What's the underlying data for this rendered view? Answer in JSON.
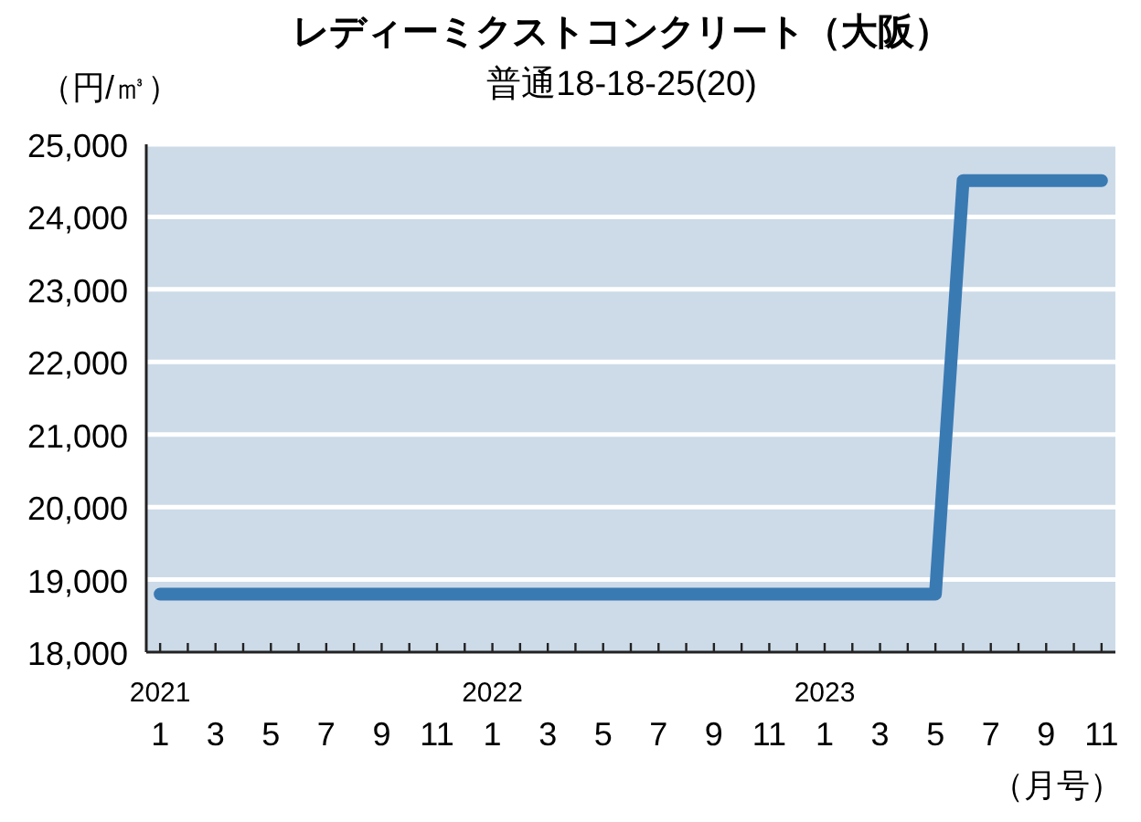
{
  "chart_data": {
    "type": "line",
    "title": "レディーミクストコンクリート（大阪）",
    "subtitle": "普通18-18-25(20)",
    "categories": [
      "2021\n1",
      null,
      "3",
      null,
      "5",
      null,
      "7",
      null,
      "9",
      null,
      "11",
      null,
      "2022\n1",
      null,
      "3",
      null,
      "5",
      null,
      "7",
      null,
      "9",
      null,
      "11",
      null,
      "2023\n1",
      null,
      "3",
      null,
      "5",
      null,
      "7",
      null,
      "9",
      null,
      "11"
    ],
    "series": [
      {
        "color": "#3a7ab3",
        "values": [
          18800,
          18800,
          18800,
          18800,
          18800,
          18800,
          18800,
          18800,
          18800,
          18800,
          18800,
          18800,
          18800,
          18800,
          18800,
          18800,
          18800,
          18800,
          18800,
          18800,
          18800,
          18800,
          18800,
          18800,
          18800,
          18800,
          18800,
          18800,
          18800,
          24500,
          24500,
          24500,
          24500,
          24500,
          24500
        ]
      }
    ],
    "ylim": [
      18000,
      25000
    ],
    "yticks": [
      {
        "value": 18000,
        "label": "18,000"
      },
      {
        "value": 19000,
        "label": "19,000"
      },
      {
        "value": 20000,
        "label": "20,000"
      },
      {
        "value": 21000,
        "label": "21,000"
      },
      {
        "value": 22000,
        "label": "22,000"
      },
      {
        "value": 23000,
        "label": "23,000"
      },
      {
        "value": 24000,
        "label": "24,000"
      },
      {
        "value": 25000,
        "label": "25,000"
      }
    ],
    "grid": "y",
    "marker": "none",
    "line_style": "solid",
    "annotations": [
      "（円/㎥）",
      "（月号）"
    ]
  }
}
